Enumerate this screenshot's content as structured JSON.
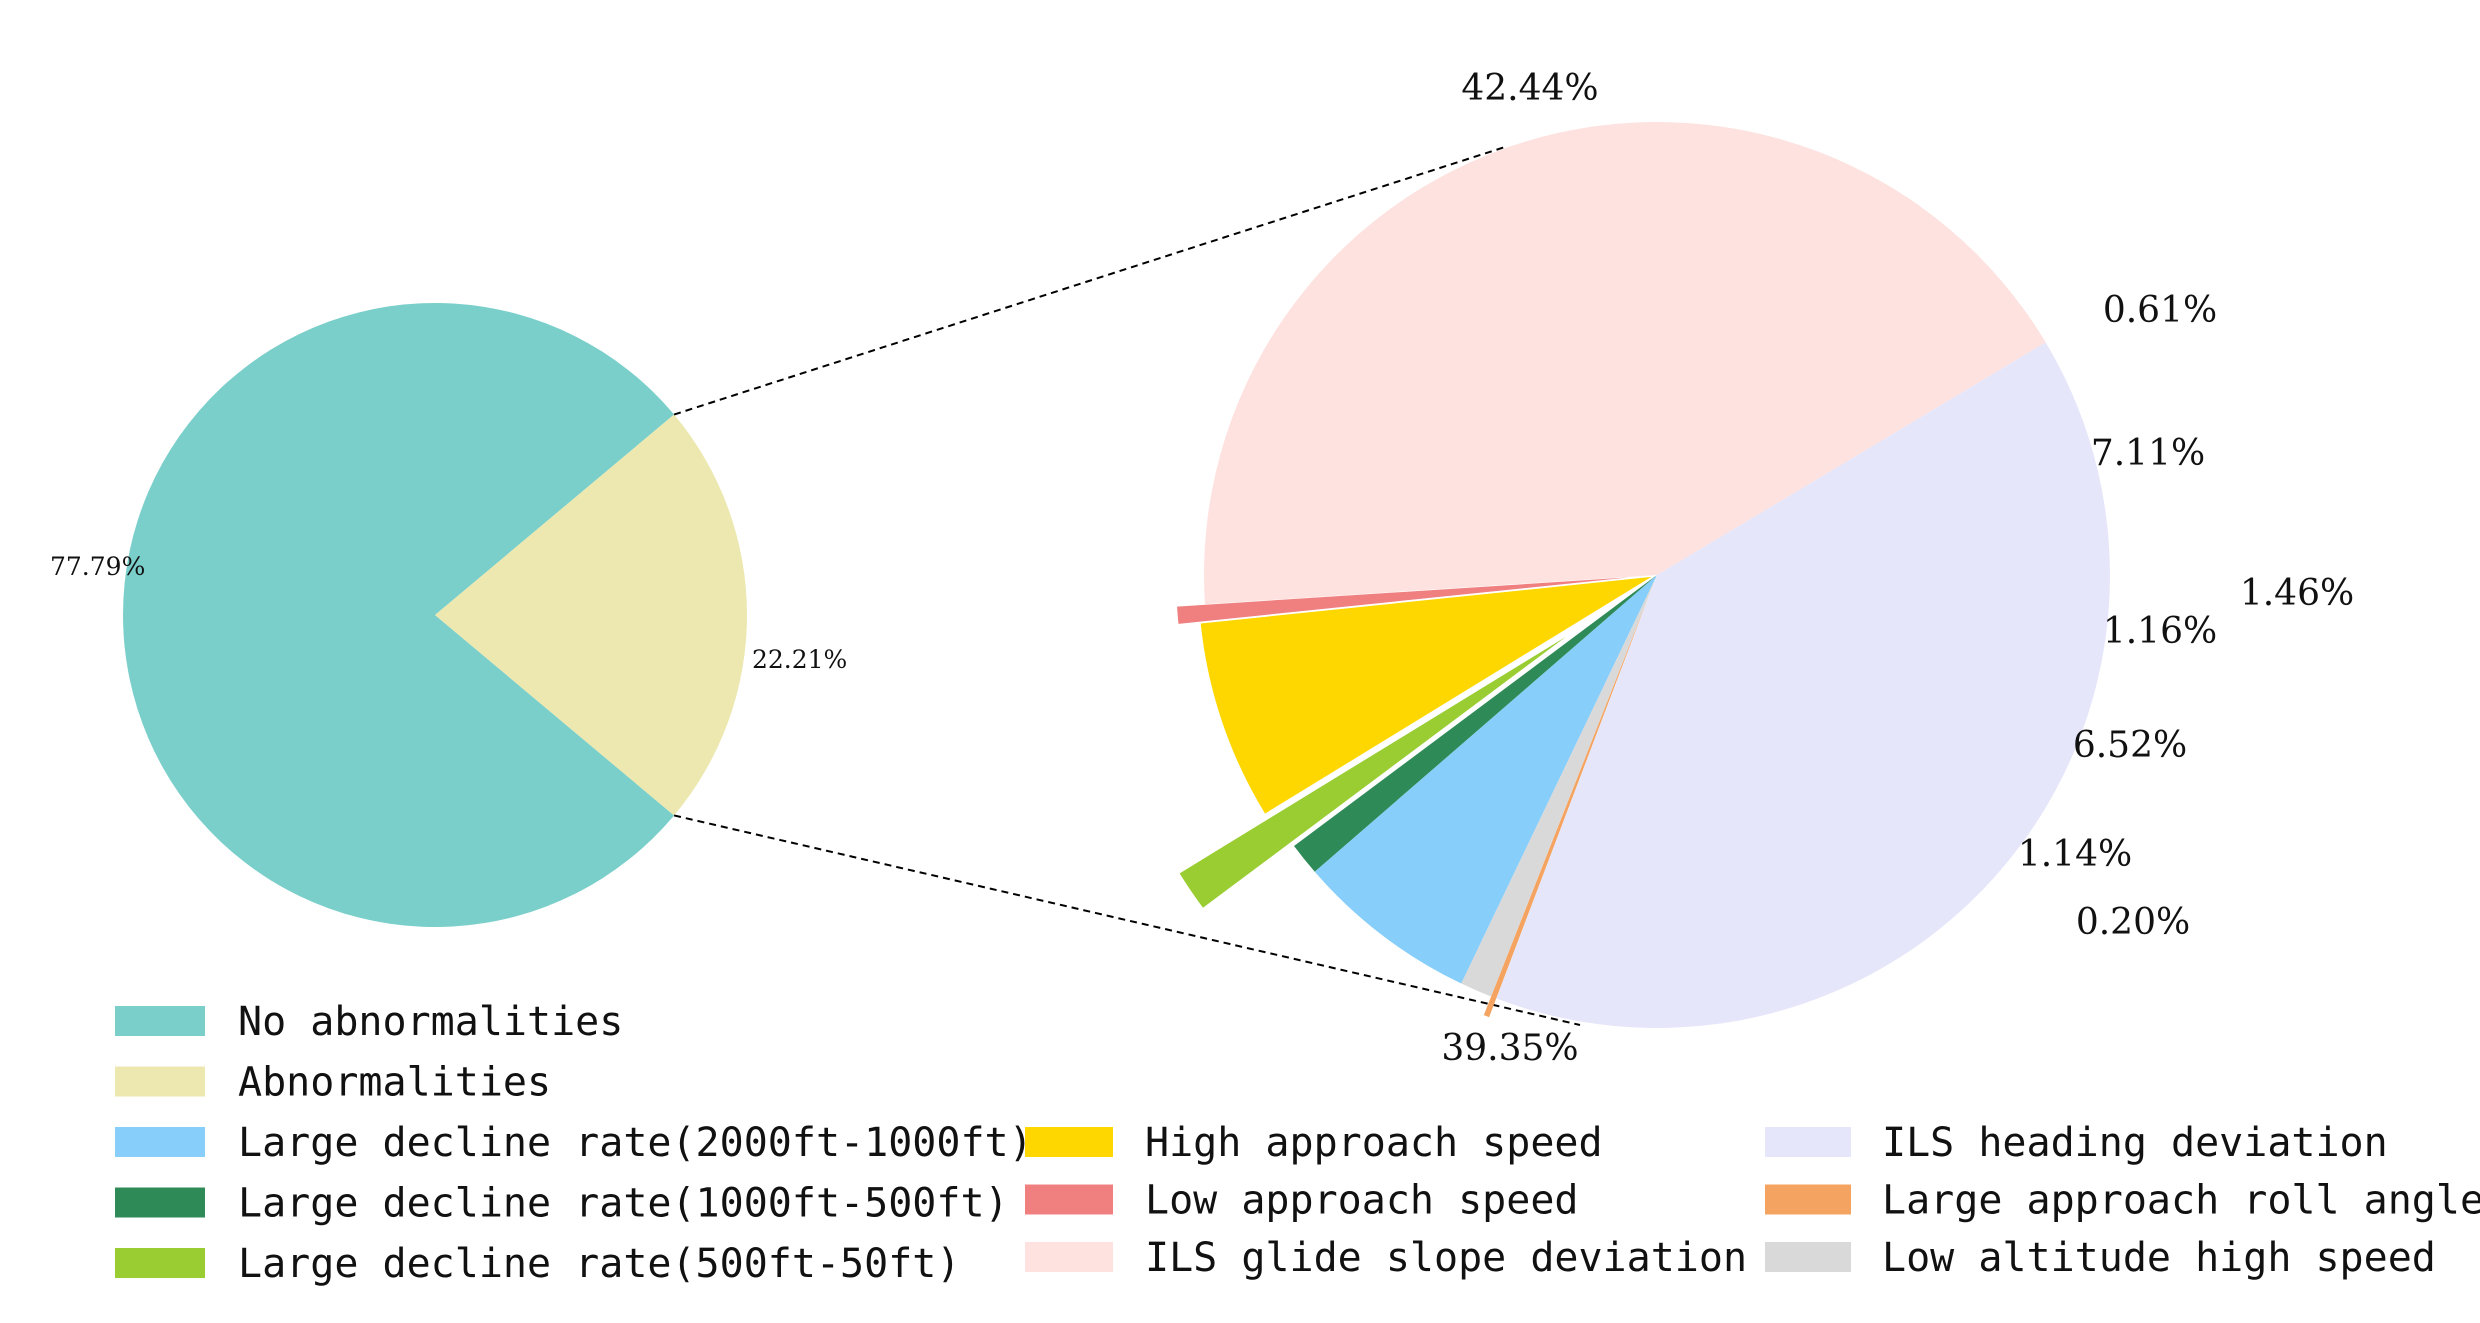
{
  "chart_data": [
    {
      "type": "pie",
      "slices": [
        {
          "label": "No abnormalities",
          "value": 77.79,
          "value_label": "77.79%",
          "color": "#7ACFCB"
        },
        {
          "label": "Abnormalities",
          "value": 22.21,
          "value_label": "22.21%",
          "color": "#ECE8B0"
        }
      ]
    },
    {
      "type": "pie",
      "slices": [
        {
          "label": "ILS glide slope deviation",
          "value": 42.44,
          "value_label": "42.44%",
          "color": "#FDE2DF"
        },
        {
          "label": "Low approach speed",
          "value": 0.61,
          "value_label": "0.61%",
          "color": "#F08080"
        },
        {
          "label": "High approach speed",
          "value": 7.11,
          "value_label": "7.11%",
          "color": "#FFD700"
        },
        {
          "label": "Large decline rate(500ft-50ft)",
          "value": 1.46,
          "value_label": "1.46%",
          "color": "#9ACD32"
        },
        {
          "label": "Large decline rate(1000ft-500ft)",
          "value": 1.16,
          "value_label": "1.16%",
          "color": "#2E8B57"
        },
        {
          "label": "Large decline rate(2000ft-1000ft)",
          "value": 6.52,
          "value_label": "6.52%",
          "color": "#87CEFA"
        },
        {
          "label": "Low altitude high speed",
          "value": 1.14,
          "value_label": "1.14%",
          "color": "#D9D9D9"
        },
        {
          "label": "Large approach roll angle",
          "value": 0.2,
          "value_label": "0.20%",
          "color": "#F4A460"
        },
        {
          "label": "ILS heading deviation",
          "value": 39.35,
          "value_label": "39.35%",
          "color": "#E6E6FA"
        }
      ]
    }
  ],
  "legend": [
    {
      "label": "No abnormalities",
      "color": "#7ACFCB"
    },
    {
      "label": "Abnormalities",
      "color": "#ECE8B0"
    },
    {
      "label": "Large decline rate(2000ft-1000ft)",
      "color": "#87CEFA"
    },
    {
      "label": "Large decline rate(1000ft-500ft)",
      "color": "#2E8B57"
    },
    {
      "label": "Large decline rate(500ft-50ft)",
      "color": "#9ACD32"
    },
    {
      "label": "High approach speed",
      "color": "#FFD700"
    },
    {
      "label": "Low approach speed",
      "color": "#F08080"
    },
    {
      "label": "ILS glide slope deviation",
      "color": "#FDE2DF"
    },
    {
      "label": "ILS heading deviation",
      "color": "#E6E6FA"
    },
    {
      "label": "Large approach roll angle",
      "color": "#F4A460"
    },
    {
      "label": "Low altitude high speed",
      "color": "#D9D9D9"
    }
  ]
}
